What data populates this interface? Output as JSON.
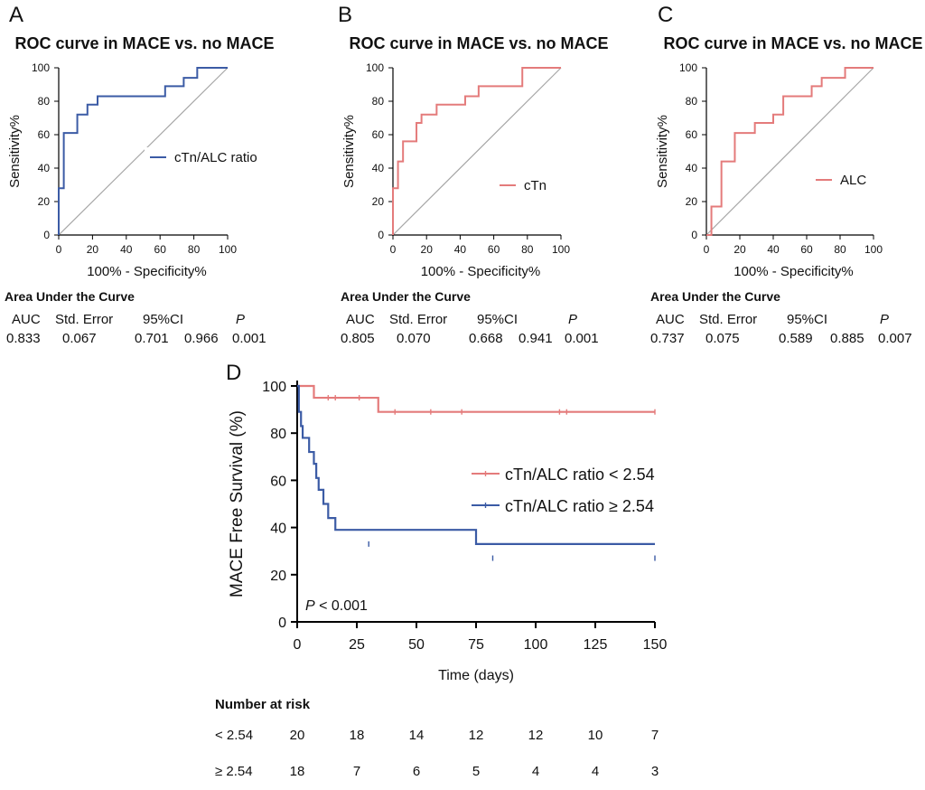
{
  "panels": [
    {
      "letter": "A",
      "title": "ROC curve in MACE vs. no MACE"
    },
    {
      "letter": "B",
      "title": "ROC curve in MACE vs. no MACE"
    },
    {
      "letter": "C",
      "title": "ROC curve in MACE vs. no MACE"
    },
    {
      "letter": "D",
      "title": ""
    }
  ],
  "auc_tables": [
    {
      "heading": "Area Under the Curve",
      "headers": [
        "AUC",
        "Std. Error",
        "95%CI",
        "P"
      ],
      "values": [
        "0.833",
        "0.067",
        "0.701",
        "0.966",
        "0.001"
      ]
    },
    {
      "heading": "Area Under the Curve",
      "headers": [
        "AUC",
        "Std. Error",
        "95%CI",
        "P"
      ],
      "values": [
        "0.805",
        "0.070",
        "0.668",
        "0.941",
        "0.001"
      ]
    },
    {
      "heading": "Area Under the Curve",
      "headers": [
        "AUC",
        "Std. Error",
        "95%CI",
        "P"
      ],
      "values": [
        "0.737",
        "0.075",
        "0.589",
        "0.885",
        "0.007"
      ]
    }
  ],
  "number_at_risk": {
    "title": "Number at risk",
    "rows": [
      {
        "label": "< 2.54",
        "values": [
          "20",
          "18",
          "14",
          "12",
          "12",
          "10",
          "7"
        ]
      },
      {
        "label": "≥ 2.54",
        "values": [
          "18",
          "7",
          "6",
          "5",
          "4",
          "4",
          "3"
        ]
      }
    ]
  },
  "colors": {
    "blue": "#3b5ba5",
    "red": "#e47b7b",
    "diag": "#a6a6a6",
    "axis": "#000000"
  },
  "chart_data": [
    {
      "type": "line",
      "title": "ROC curve in MACE vs. no MACE",
      "xlabel": "100% - Specificity%",
      "ylabel": "Sensitivity%",
      "xlim": [
        0,
        100
      ],
      "ylim": [
        0,
        100
      ],
      "xticks": [
        0,
        20,
        40,
        60,
        80,
        100
      ],
      "yticks": [
        0,
        20,
        40,
        60,
        80,
        100
      ],
      "legend_position": "right",
      "color": "#3b5ba5",
      "series": [
        {
          "name": "cTn/ALC ratio",
          "x": [
            0,
            0,
            0,
            0,
            3,
            3,
            11,
            11,
            17,
            17,
            20,
            20,
            23,
            23,
            63,
            63,
            69,
            69,
            74,
            74,
            82,
            82,
            100
          ],
          "y": [
            0,
            28,
            28,
            28,
            28,
            61,
            61,
            72,
            72,
            78,
            78,
            78,
            78,
            83,
            83,
            89,
            89,
            89,
            89,
            94,
            94,
            100,
            100
          ]
        }
      ]
    },
    {
      "type": "line",
      "title": "ROC curve in MACE vs. no MACE",
      "xlabel": "100% - Specificity%",
      "ylabel": "Sensitivity%",
      "xlim": [
        0,
        100
      ],
      "ylim": [
        0,
        100
      ],
      "xticks": [
        0,
        20,
        40,
        60,
        80,
        100
      ],
      "yticks": [
        0,
        20,
        40,
        60,
        80,
        100
      ],
      "legend_position": "right",
      "color": "#e47b7b",
      "series": [
        {
          "name": "cTn",
          "x": [
            0,
            0,
            3,
            3,
            6,
            6,
            11,
            11,
            14,
            14,
            17,
            17,
            23,
            23,
            26,
            26,
            43,
            43,
            51,
            51,
            77,
            77,
            100
          ],
          "y": [
            0,
            28,
            28,
            44,
            44,
            56,
            56,
            56,
            56,
            67,
            67,
            72,
            72,
            72,
            72,
            78,
            78,
            83,
            83,
            89,
            89,
            100,
            100
          ]
        }
      ]
    },
    {
      "type": "line",
      "title": "ROC curve in MACE vs. no MACE",
      "xlabel": "100% - Specificity%",
      "ylabel": "Sensitivity%",
      "xlim": [
        0,
        100
      ],
      "ylim": [
        0,
        100
      ],
      "xticks": [
        0,
        20,
        40,
        60,
        80,
        100
      ],
      "yticks": [
        0,
        20,
        40,
        60,
        80,
        100
      ],
      "legend_position": "right",
      "color": "#e47b7b",
      "series": [
        {
          "name": "ALC",
          "x": [
            0,
            3,
            3,
            9,
            9,
            17,
            17,
            29,
            29,
            40,
            40,
            46,
            46,
            57,
            57,
            63,
            63,
            69,
            69,
            80,
            80,
            83,
            83,
            100
          ],
          "y": [
            0,
            0,
            17,
            17,
            44,
            44,
            61,
            61,
            67,
            67,
            72,
            72,
            83,
            83,
            83,
            83,
            89,
            89,
            94,
            94,
            94,
            94,
            100,
            100
          ]
        }
      ]
    },
    {
      "type": "line",
      "title": "",
      "xlabel": "Time (days)",
      "ylabel": "MACE Free Survival (%)",
      "xlim": [
        0,
        150
      ],
      "ylim": [
        0,
        100
      ],
      "xticks": [
        0,
        25,
        50,
        75,
        100,
        125,
        150
      ],
      "yticks": [
        0,
        20,
        40,
        60,
        80,
        100
      ],
      "annotation": "P < 0.001",
      "legend_position": "right",
      "series": [
        {
          "name": "cTn/ALC ratio < 2.54",
          "color": "#e47b7b",
          "x": [
            0,
            7,
            7,
            34,
            34,
            150
          ],
          "y": [
            100,
            100,
            95,
            95,
            89,
            89
          ],
          "censor_x": [
            13,
            16,
            26,
            41,
            56,
            69,
            110,
            113,
            150
          ],
          "censor_y": [
            95,
            95,
            95,
            89,
            89,
            89,
            89,
            89,
            89
          ]
        },
        {
          "name": "cTn/ALC ratio ≥ 2.54",
          "color": "#3b5ba5",
          "x": [
            0,
            0.7,
            0.7,
            1.6,
            1.6,
            2.3,
            2.3,
            5,
            5,
            7,
            7,
            8,
            8,
            9,
            9,
            11,
            11,
            13,
            13,
            16,
            16,
            75,
            75,
            150
          ],
          "y": [
            100,
            100,
            89,
            89,
            83,
            83,
            78,
            78,
            72,
            72,
            67,
            67,
            61,
            61,
            56,
            56,
            50,
            50,
            44,
            44,
            39,
            39,
            33,
            33
          ],
          "censor_x": [
            30,
            82,
            150
          ],
          "censor_y": [
            33,
            27,
            27
          ]
        }
      ]
    }
  ]
}
